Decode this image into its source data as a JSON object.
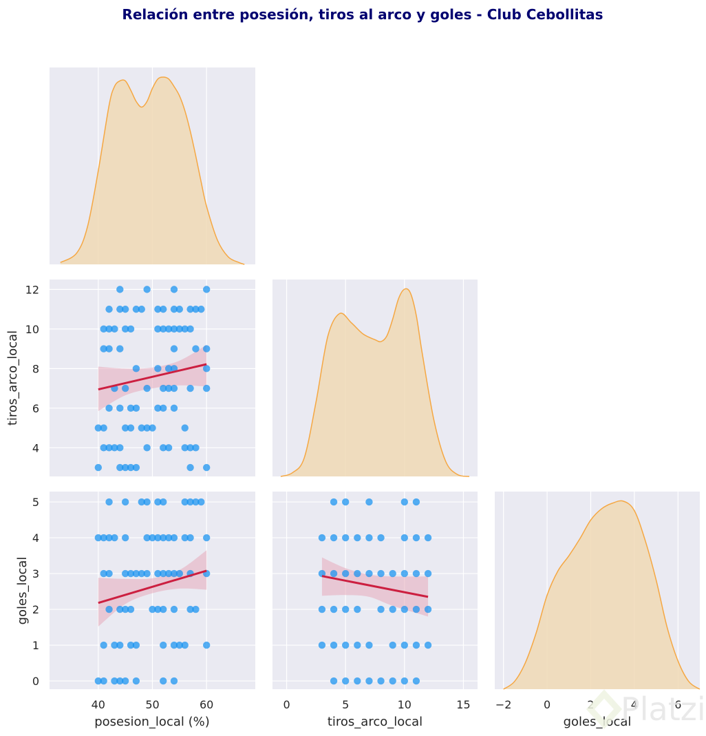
{
  "chart_data": {
    "type": "pairplot",
    "title": "Relación entre posesión, tiros al arco y goles - Club Cebollitas",
    "variables": [
      "posesion_local (%)",
      "tiros_arco_local",
      "goles_local"
    ],
    "colors": {
      "title": "#000070",
      "panel_bg": "#eaeaf2",
      "grid": "#ffffff",
      "kde_line": "#f5a742",
      "kde_fill": "#f0d9b5",
      "points": "#1592f0",
      "regression": "#cc1f40",
      "ci_band": "#e5aabb"
    },
    "axes": {
      "posesion": {
        "label": "posesion_local (%)",
        "range": [
          31,
          69
        ],
        "ticks": [
          "40",
          "50",
          "60"
        ],
        "tick_values": [
          40,
          50,
          60
        ]
      },
      "tiros": {
        "label": "tiros_arco_local",
        "range": [
          -1.2,
          16.2
        ],
        "ticks": [
          "0",
          "5",
          "10",
          "15"
        ],
        "tick_values": [
          0,
          5,
          10,
          15
        ],
        "y_range": [
          2.55,
          12.5
        ],
        "y_ticks": [
          "4",
          "6",
          "8",
          "10",
          "12"
        ],
        "y_tick_values": [
          4,
          6,
          8,
          10,
          12
        ]
      },
      "goles": {
        "label": "goles_local",
        "range": [
          -2.4,
          7.0
        ],
        "ticks": [
          "−2",
          "0",
          "2",
          "4",
          "6"
        ],
        "tick_values": [
          -2,
          0,
          2,
          4,
          6
        ],
        "y_range": [
          -0.23,
          5.29
        ],
        "y_ticks": [
          "0",
          "1",
          "2",
          "3",
          "4",
          "5"
        ],
        "y_tick_values": [
          0,
          1,
          2,
          3,
          4,
          5
        ]
      }
    },
    "kde": {
      "posesion": {
        "x": [
          33,
          36,
          38,
          40,
          42,
          43,
          44,
          45,
          46,
          47,
          48,
          49,
          50,
          51,
          52,
          53,
          54,
          55,
          56,
          57,
          58,
          59,
          60,
          62,
          64,
          66,
          67
        ],
        "density": [
          0.01,
          0.06,
          0.2,
          0.5,
          0.85,
          0.95,
          0.98,
          0.98,
          0.93,
          0.87,
          0.84,
          0.87,
          0.94,
          0.99,
          1.0,
          0.99,
          0.95,
          0.9,
          0.82,
          0.71,
          0.58,
          0.44,
          0.31,
          0.13,
          0.04,
          0.01,
          0.0
        ]
      },
      "tiros": {
        "x": [
          -0.5,
          0.5,
          1.5,
          2.5,
          3.5,
          4.5,
          5.5,
          6.5,
          7.5,
          8.0,
          8.5,
          9.0,
          9.5,
          10.0,
          10.5,
          11.0,
          11.5,
          12.5,
          13.5,
          14.5,
          15.5
        ],
        "density": [
          0.0,
          0.02,
          0.1,
          0.4,
          0.75,
          0.87,
          0.82,
          0.76,
          0.73,
          0.72,
          0.75,
          0.84,
          0.95,
          1.0,
          0.98,
          0.86,
          0.66,
          0.3,
          0.08,
          0.01,
          0.0
        ]
      },
      "goles": {
        "x": [
          -2.0,
          -1.5,
          -1.0,
          -0.5,
          0.0,
          0.5,
          1.0,
          1.5,
          2.0,
          2.5,
          3.0,
          3.5,
          4.0,
          4.5,
          5.0,
          5.5,
          6.0,
          6.5,
          7.0
        ],
        "density": [
          0.0,
          0.04,
          0.14,
          0.3,
          0.5,
          0.63,
          0.71,
          0.8,
          0.9,
          0.96,
          0.99,
          1.0,
          0.95,
          0.79,
          0.58,
          0.33,
          0.15,
          0.04,
          0.0
        ]
      }
    },
    "scatter_posesion_tiros": {
      "points": [
        [
          44,
          12
        ],
        [
          49,
          12
        ],
        [
          54,
          12
        ],
        [
          60,
          12
        ],
        [
          42,
          11
        ],
        [
          44,
          11
        ],
        [
          45,
          11
        ],
        [
          47,
          11
        ],
        [
          48,
          11
        ],
        [
          51,
          11
        ],
        [
          52,
          11
        ],
        [
          54,
          11
        ],
        [
          55,
          11
        ],
        [
          57,
          11
        ],
        [
          58,
          11
        ],
        [
          59,
          11
        ],
        [
          41,
          10
        ],
        [
          42,
          10
        ],
        [
          43,
          10
        ],
        [
          45,
          10
        ],
        [
          46,
          10
        ],
        [
          51,
          10
        ],
        [
          52,
          10
        ],
        [
          53,
          10
        ],
        [
          54,
          10
        ],
        [
          55,
          10
        ],
        [
          56,
          10
        ],
        [
          57,
          10
        ],
        [
          41,
          9
        ],
        [
          42,
          9
        ],
        [
          44,
          9
        ],
        [
          54,
          9
        ],
        [
          58,
          9
        ],
        [
          60,
          9
        ],
        [
          47,
          8
        ],
        [
          51,
          8
        ],
        [
          53,
          8
        ],
        [
          54,
          8
        ],
        [
          60,
          8
        ],
        [
          43,
          7
        ],
        [
          45,
          7
        ],
        [
          49,
          7
        ],
        [
          52,
          7
        ],
        [
          53,
          7
        ],
        [
          54,
          7
        ],
        [
          57,
          7
        ],
        [
          60,
          7
        ],
        [
          42,
          6
        ],
        [
          44,
          6
        ],
        [
          46,
          6
        ],
        [
          47,
          6
        ],
        [
          51,
          6
        ],
        [
          52,
          6
        ],
        [
          54,
          6
        ],
        [
          40,
          5
        ],
        [
          41,
          5
        ],
        [
          45,
          5
        ],
        [
          46,
          5
        ],
        [
          48,
          5
        ],
        [
          49,
          5
        ],
        [
          50,
          5
        ],
        [
          56,
          5
        ],
        [
          41,
          4
        ],
        [
          42,
          4
        ],
        [
          43,
          4
        ],
        [
          44,
          4
        ],
        [
          49,
          4
        ],
        [
          52,
          4
        ],
        [
          53,
          4
        ],
        [
          56,
          4
        ],
        [
          57,
          4
        ],
        [
          58,
          4
        ],
        [
          40,
          3
        ],
        [
          44,
          3
        ],
        [
          45,
          3
        ],
        [
          46,
          3
        ],
        [
          47,
          3
        ],
        [
          57,
          3
        ],
        [
          60,
          3
        ]
      ],
      "regression": {
        "x": [
          40,
          60
        ],
        "y": [
          6.95,
          8.22
        ]
      },
      "ci_upper": [
        [
          40,
          8.1
        ],
        [
          45,
          8.0
        ],
        [
          50,
          8.05
        ],
        [
          55,
          8.4
        ],
        [
          60,
          9.2
        ]
      ],
      "ci_lower": [
        [
          40,
          5.85
        ],
        [
          45,
          6.65
        ],
        [
          50,
          7.0
        ],
        [
          55,
          7.15
        ],
        [
          60,
          7.1
        ]
      ]
    },
    "scatter_posesion_goles": {
      "points": [
        [
          42,
          5
        ],
        [
          45,
          5
        ],
        [
          48,
          5
        ],
        [
          49,
          5
        ],
        [
          51,
          5
        ],
        [
          52,
          5
        ],
        [
          56,
          5
        ],
        [
          57,
          5
        ],
        [
          58,
          5
        ],
        [
          59,
          5
        ],
        [
          40,
          4
        ],
        [
          41,
          4
        ],
        [
          42,
          4
        ],
        [
          43,
          4
        ],
        [
          45,
          4
        ],
        [
          49,
          4
        ],
        [
          50,
          4
        ],
        [
          51,
          4
        ],
        [
          52,
          4
        ],
        [
          53,
          4
        ],
        [
          54,
          4
        ],
        [
          56,
          4
        ],
        [
          57,
          4
        ],
        [
          60,
          4
        ],
        [
          41,
          3
        ],
        [
          42,
          3
        ],
        [
          45,
          3
        ],
        [
          46,
          3
        ],
        [
          47,
          3
        ],
        [
          48,
          3
        ],
        [
          49,
          3
        ],
        [
          51,
          3
        ],
        [
          52,
          3
        ],
        [
          53,
          3
        ],
        [
          54,
          3
        ],
        [
          55,
          3
        ],
        [
          57,
          3
        ],
        [
          60,
          3
        ],
        [
          42,
          2
        ],
        [
          44,
          2
        ],
        [
          45,
          2
        ],
        [
          46,
          2
        ],
        [
          50,
          2
        ],
        [
          51,
          2
        ],
        [
          52,
          2
        ],
        [
          54,
          2
        ],
        [
          57,
          2
        ],
        [
          58,
          2
        ],
        [
          41,
          1
        ],
        [
          43,
          1
        ],
        [
          44,
          1
        ],
        [
          46,
          1
        ],
        [
          47,
          1
        ],
        [
          52,
          1
        ],
        [
          54,
          1
        ],
        [
          55,
          1
        ],
        [
          56,
          1
        ],
        [
          60,
          1
        ],
        [
          40,
          0
        ],
        [
          41,
          0
        ],
        [
          43,
          0
        ],
        [
          44,
          0
        ],
        [
          45,
          0
        ],
        [
          47,
          0
        ],
        [
          52,
          0
        ],
        [
          54,
          0
        ]
      ],
      "regression": {
        "x": [
          40,
          60
        ],
        "y": [
          2.18,
          3.08
        ]
      },
      "ci_upper": [
        [
          40,
          2.88
        ],
        [
          45,
          2.85
        ],
        [
          50,
          2.87
        ],
        [
          55,
          3.1
        ],
        [
          60,
          3.65
        ]
      ],
      "ci_lower": [
        [
          40,
          1.52
        ],
        [
          45,
          2.15
        ],
        [
          50,
          2.45
        ],
        [
          55,
          2.58
        ],
        [
          60,
          2.55
        ]
      ]
    },
    "scatter_tiros_goles": {
      "points": [
        [
          4,
          5
        ],
        [
          5,
          5
        ],
        [
          7,
          5
        ],
        [
          10,
          5
        ],
        [
          11,
          5
        ],
        [
          3,
          4
        ],
        [
          4,
          4
        ],
        [
          5,
          4
        ],
        [
          6,
          4
        ],
        [
          7,
          4
        ],
        [
          8,
          4
        ],
        [
          10,
          4
        ],
        [
          11,
          4
        ],
        [
          12,
          4
        ],
        [
          3,
          3
        ],
        [
          4,
          3
        ],
        [
          5,
          3
        ],
        [
          6,
          3
        ],
        [
          7,
          3
        ],
        [
          8,
          3
        ],
        [
          9,
          3
        ],
        [
          10,
          3
        ],
        [
          11,
          3
        ],
        [
          12,
          3
        ],
        [
          3,
          2
        ],
        [
          4,
          2
        ],
        [
          5,
          2
        ],
        [
          6,
          2
        ],
        [
          8,
          2
        ],
        [
          9,
          2
        ],
        [
          10,
          2
        ],
        [
          11,
          2
        ],
        [
          12,
          2
        ],
        [
          3,
          1
        ],
        [
          4,
          1
        ],
        [
          5,
          1
        ],
        [
          6,
          1
        ],
        [
          7,
          1
        ],
        [
          9,
          1
        ],
        [
          10,
          1
        ],
        [
          11,
          1
        ],
        [
          12,
          1
        ],
        [
          4,
          0
        ],
        [
          5,
          0
        ],
        [
          6,
          0
        ],
        [
          7,
          0
        ],
        [
          8,
          0
        ],
        [
          9,
          0
        ],
        [
          10,
          0
        ],
        [
          11,
          0
        ]
      ],
      "regression": {
        "x": [
          3,
          12
        ],
        "y": [
          2.93,
          2.35
        ]
      },
      "ci_upper": [
        [
          3,
          3.45
        ],
        [
          5,
          3.15
        ],
        [
          7,
          2.97
        ],
        [
          9,
          2.92
        ],
        [
          12,
          2.92
        ]
      ],
      "ci_lower": [
        [
          3,
          2.38
        ],
        [
          5,
          2.4
        ],
        [
          7,
          2.35
        ],
        [
          9,
          2.1
        ],
        [
          12,
          1.8
        ]
      ]
    }
  },
  "watermark": "Platzi"
}
